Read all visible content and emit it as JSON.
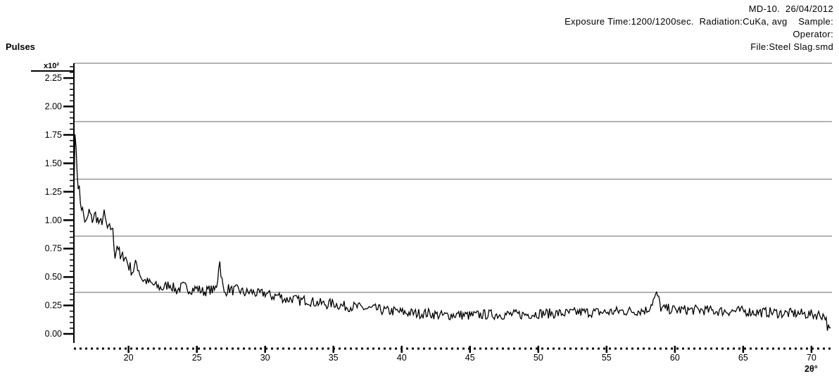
{
  "header": {
    "line1": "MD-10.  26/04/2012",
    "line2": "Exposure Time:1200/1200sec.  Radiation:CuKa, avg    Sample:",
    "line3": "Operator:",
    "line4": "File:Steel Slag.smd"
  },
  "chart_data": {
    "type": "line",
    "title": "",
    "ylabel": "Pulses",
    "y_multiplier_label": "x10²",
    "xlabel": "2θ°",
    "xlim": [
      16,
      71.5
    ],
    "ylim": [
      -0.08,
      2.38
    ],
    "y_ticks": [
      "0.00",
      "0.25",
      "0.50",
      "0.75",
      "1.00",
      "1.25",
      "1.50",
      "1.75",
      "2.00",
      "2.25"
    ],
    "x_ticks": [
      "20",
      "25",
      "30",
      "35",
      "40",
      "45",
      "50",
      "55",
      "60",
      "65",
      "70"
    ],
    "grid": "horizontal",
    "series": [
      {
        "x": [
          16.0,
          16.1,
          16.2,
          16.35,
          16.5,
          16.7,
          16.9,
          17.1,
          17.3,
          17.6,
          17.9,
          18.2,
          18.5,
          18.8,
          19.0,
          19.2,
          19.4,
          19.7,
          20.0,
          20.3,
          20.6,
          21.0,
          21.5,
          22.0,
          22.5,
          23.0,
          23.5,
          24.0,
          24.5,
          25.0,
          25.5,
          26.0,
          26.3,
          26.5,
          26.65,
          26.8,
          27.0,
          27.3,
          27.6,
          28.0,
          28.5,
          29.0,
          29.5,
          30.0,
          30.5,
          31.0,
          31.5,
          32.0,
          32.5,
          33.0,
          33.5,
          34.0,
          34.5,
          35.0,
          35.5,
          36.0,
          36.5,
          37.0,
          37.5,
          38.0,
          38.5,
          39.0,
          39.5,
          40.0,
          41.0,
          42.0,
          43.0,
          44.0,
          45.0,
          46.0,
          47.0,
          48.0,
          49.0,
          50.0,
          51.0,
          52.0,
          53.0,
          54.0,
          55.0,
          56.0,
          57.0,
          58.0,
          58.7,
          59.0,
          59.5,
          60.0,
          61.0,
          62.0,
          63.0,
          64.0,
          65.0,
          66.0,
          67.0,
          68.0,
          69.0,
          70.0,
          70.5,
          71.0,
          71.2,
          71.4
        ],
        "y": [
          1.2,
          1.9,
          1.45,
          1.3,
          1.15,
          1.05,
          0.95,
          1.08,
          1.0,
          1.05,
          0.95,
          1.05,
          0.9,
          0.95,
          0.7,
          0.8,
          0.65,
          0.7,
          0.6,
          0.55,
          0.62,
          0.48,
          0.45,
          0.42,
          0.4,
          0.44,
          0.38,
          0.42,
          0.39,
          0.4,
          0.37,
          0.39,
          0.38,
          0.45,
          0.67,
          0.5,
          0.35,
          0.4,
          0.38,
          0.39,
          0.36,
          0.37,
          0.35,
          0.36,
          0.33,
          0.34,
          0.3,
          0.31,
          0.29,
          0.3,
          0.28,
          0.27,
          0.26,
          0.27,
          0.25,
          0.24,
          0.24,
          0.23,
          0.22,
          0.22,
          0.21,
          0.2,
          0.2,
          0.19,
          0.18,
          0.18,
          0.16,
          0.17,
          0.16,
          0.17,
          0.17,
          0.17,
          0.17,
          0.18,
          0.18,
          0.18,
          0.19,
          0.19,
          0.19,
          0.2,
          0.2,
          0.21,
          0.35,
          0.22,
          0.22,
          0.21,
          0.21,
          0.21,
          0.2,
          0.2,
          0.2,
          0.19,
          0.19,
          0.18,
          0.18,
          0.17,
          0.17,
          0.16,
          0.05,
          0.02
        ]
      }
    ]
  }
}
